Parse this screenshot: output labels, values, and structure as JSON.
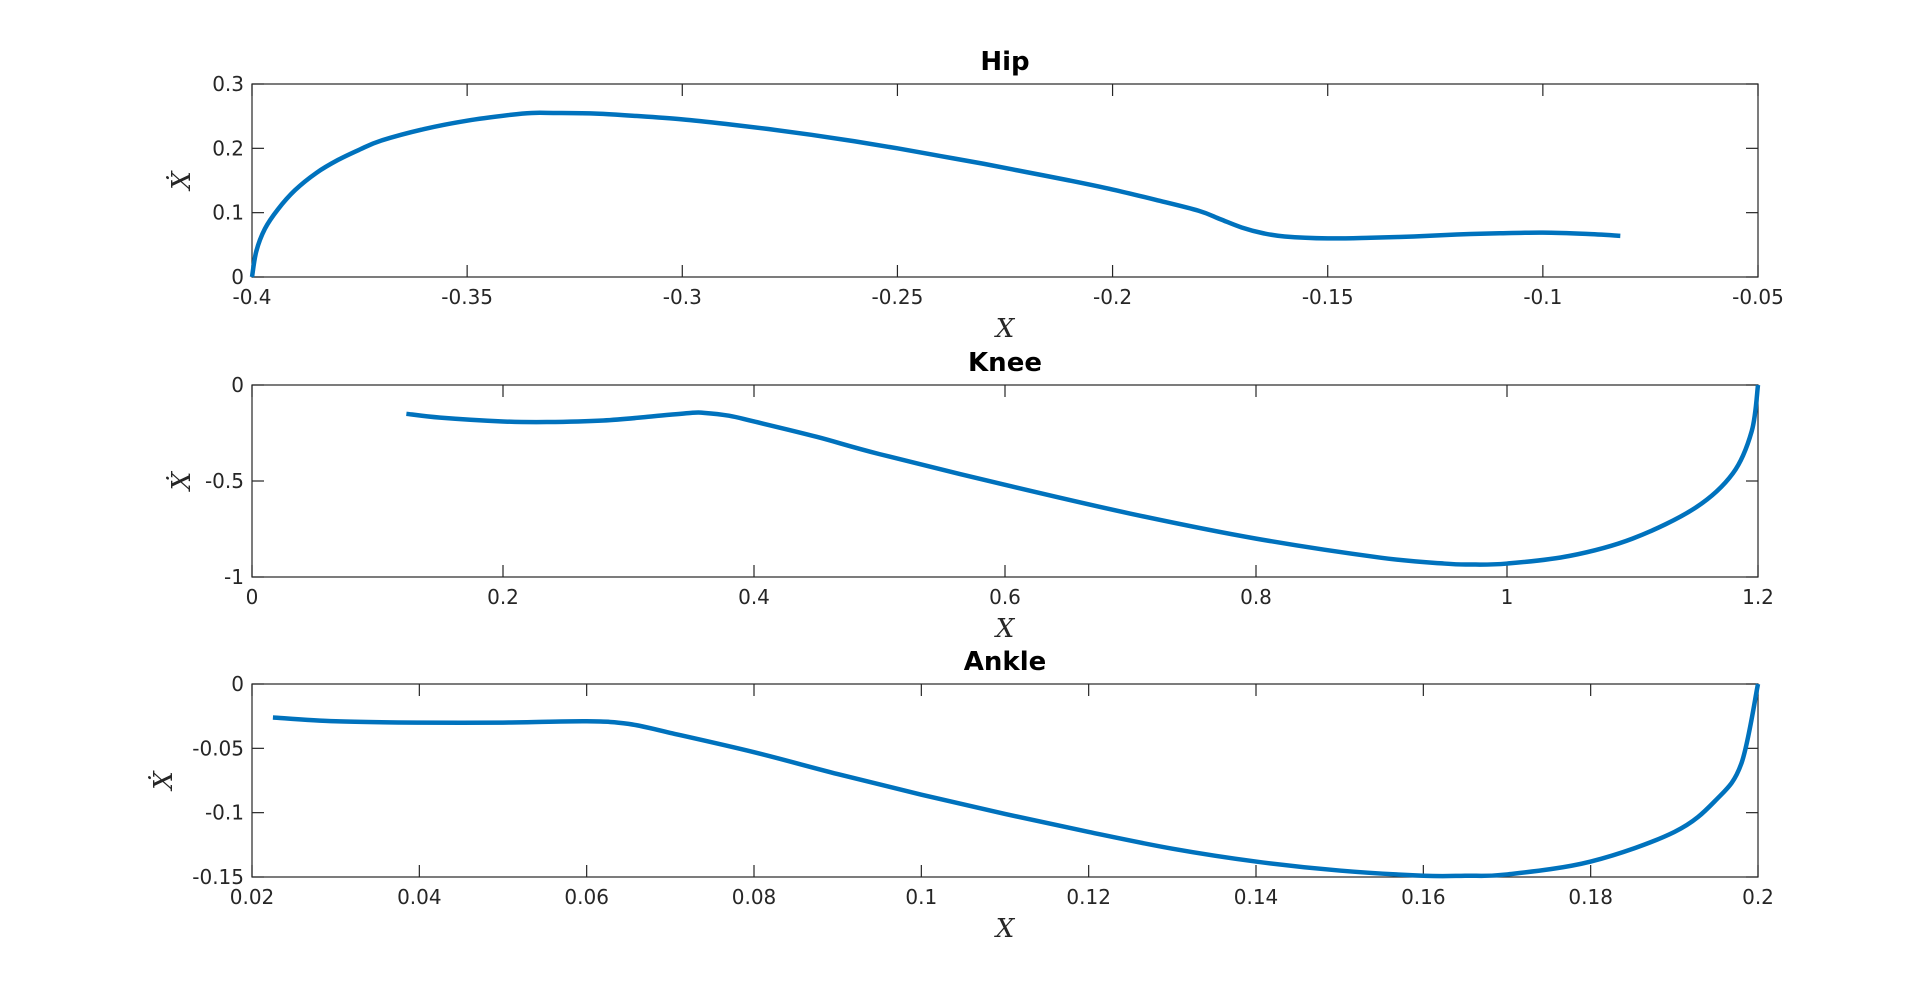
{
  "colors": {
    "line": "#0072BD",
    "axes": "#262626",
    "background": "#ffffff"
  },
  "chart_data": [
    {
      "type": "line",
      "title": "Hip",
      "xlabel": "X",
      "ylabel": "Ẋ",
      "xlim": [
        -0.4,
        -0.05
      ],
      "ylim": [
        0,
        0.3
      ],
      "xticks": [
        -0.4,
        -0.35,
        -0.3,
        -0.25,
        -0.2,
        -0.15,
        -0.1,
        -0.05
      ],
      "yticks": [
        0,
        0.1,
        0.2,
        0.3
      ],
      "xtick_labels": [
        "-0.4",
        "-0.35",
        "-0.3",
        "-0.25",
        "-0.2",
        "-0.15",
        "-0.1",
        "-0.05"
      ],
      "ytick_labels": [
        "0",
        "0.1",
        "0.2",
        "0.3"
      ],
      "grid": false,
      "series": [
        {
          "x": [
            -0.4,
            -0.399,
            -0.397,
            -0.394,
            -0.39,
            -0.385,
            -0.38,
            -0.375,
            -0.37,
            -0.36,
            -0.35,
            -0.34,
            -0.335,
            -0.33,
            -0.32,
            -0.31,
            -0.3,
            -0.29,
            -0.28,
            -0.27,
            -0.26,
            -0.25,
            -0.24,
            -0.23,
            -0.22,
            -0.21,
            -0.2,
            -0.19,
            -0.18,
            -0.175,
            -0.17,
            -0.165,
            -0.16,
            -0.15,
            -0.14,
            -0.13,
            -0.12,
            -0.11,
            -0.1,
            -0.09,
            -0.082
          ],
          "y": [
            0,
            0.04,
            0.075,
            0.105,
            0.135,
            0.162,
            0.182,
            0.198,
            0.212,
            0.23,
            0.243,
            0.252,
            0.255,
            0.255,
            0.254,
            0.25,
            0.245,
            0.238,
            0.23,
            0.221,
            0.211,
            0.2,
            0.188,
            0.176,
            0.163,
            0.15,
            0.136,
            0.12,
            0.103,
            0.09,
            0.077,
            0.068,
            0.063,
            0.06,
            0.061,
            0.063,
            0.066,
            0.068,
            0.069,
            0.067,
            0.064
          ]
        }
      ]
    },
    {
      "type": "line",
      "title": "Knee",
      "xlabel": "X",
      "ylabel": "Ẋ",
      "xlim": [
        0,
        1.2
      ],
      "ylim": [
        -1,
        0
      ],
      "xticks": [
        0,
        0.2,
        0.4,
        0.6,
        0.8,
        1,
        1.2
      ],
      "yticks": [
        -1,
        -0.5,
        0
      ],
      "xtick_labels": [
        "0",
        "0.2",
        "0.4",
        "0.6",
        "0.8",
        "1",
        "1.2"
      ],
      "ytick_labels": [
        "-1",
        "-0.5",
        "0"
      ],
      "grid": false,
      "series": [
        {
          "x": [
            0.123,
            0.15,
            0.2,
            0.235,
            0.28,
            0.32,
            0.35,
            0.36,
            0.38,
            0.4,
            0.45,
            0.5,
            0.6,
            0.7,
            0.8,
            0.9,
            0.95,
            0.97,
            1.0,
            1.05,
            1.1,
            1.15,
            1.18,
            1.195,
            1.2
          ],
          "y": [
            -0.15,
            -0.17,
            -0.19,
            -0.193,
            -0.185,
            -0.163,
            -0.145,
            -0.145,
            -0.16,
            -0.19,
            -0.27,
            -0.36,
            -0.52,
            -0.67,
            -0.8,
            -0.9,
            -0.93,
            -0.935,
            -0.93,
            -0.89,
            -0.8,
            -0.64,
            -0.46,
            -0.24,
            0
          ]
        }
      ]
    },
    {
      "type": "line",
      "title": "Ankle",
      "xlabel": "X",
      "ylabel": "Ẋ",
      "xlim": [
        0.02,
        0.2
      ],
      "ylim": [
        -0.15,
        0
      ],
      "xticks": [
        0.02,
        0.04,
        0.06,
        0.08,
        0.1,
        0.12,
        0.14,
        0.16,
        0.18,
        0.2
      ],
      "yticks": [
        -0.15,
        -0.1,
        -0.05,
        0
      ],
      "xtick_labels": [
        "0.02",
        "0.04",
        "0.06",
        "0.08",
        "0.1",
        "0.12",
        "0.14",
        "0.16",
        "0.18",
        "0.2"
      ],
      "ytick_labels": [
        "-0.15",
        "-0.1",
        "-0.05",
        "0"
      ],
      "grid": false,
      "series": [
        {
          "x": [
            0.0225,
            0.03,
            0.04,
            0.05,
            0.06,
            0.065,
            0.07,
            0.08,
            0.09,
            0.1,
            0.11,
            0.12,
            0.13,
            0.14,
            0.15,
            0.16,
            0.165,
            0.17,
            0.18,
            0.19,
            0.195,
            0.198,
            0.2
          ],
          "y": [
            -0.026,
            -0.029,
            -0.03,
            -0.03,
            -0.029,
            -0.031,
            -0.038,
            -0.053,
            -0.07,
            -0.086,
            -0.101,
            -0.115,
            -0.128,
            -0.138,
            -0.145,
            -0.149,
            -0.149,
            -0.148,
            -0.138,
            -0.115,
            -0.09,
            -0.062,
            0
          ]
        }
      ]
    }
  ]
}
